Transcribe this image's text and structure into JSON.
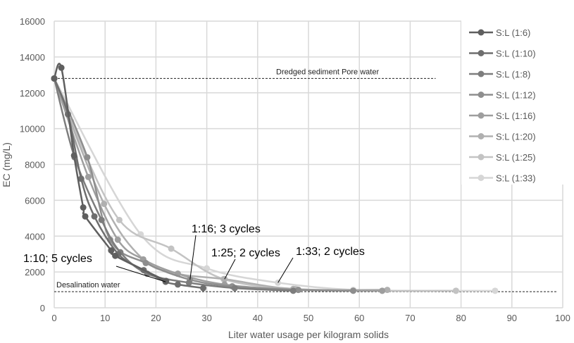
{
  "chart_data": {
    "type": "line",
    "title": "",
    "xlabel": "Liter water usage per kilogram solids",
    "ylabel": "EC (mg/L)",
    "xlim": [
      0,
      100
    ],
    "ylim": [
      0,
      16000
    ],
    "xticks": [
      0,
      10,
      20,
      30,
      40,
      50,
      60,
      70,
      80,
      90,
      100
    ],
    "yticks": [
      0,
      2000,
      4000,
      6000,
      8000,
      10000,
      12000,
      14000,
      16000
    ],
    "grid": true,
    "legend_position": "top-right",
    "reference_lines": [
      {
        "label": "Dredged sediment Pore water",
        "y": 12800
      },
      {
        "label": "Desalination water",
        "y": 900
      }
    ],
    "annotations": [
      {
        "text": "1:10; 5 cycles",
        "x": 21.9,
        "y": 1450
      },
      {
        "text": "1:16; 3 cycles",
        "x": 26.7,
        "y": 1570
      },
      {
        "text": "1:25; 2 cycles",
        "x": 33.5,
        "y": 1600
      },
      {
        "text": "1:33; 2 cycles",
        "x": 44,
        "y": 1400
      }
    ],
    "series": [
      {
        "name": "S:L (1:6)",
        "color": "#5f5f5f",
        "points": [
          [
            0,
            12800
          ],
          [
            1.4,
            13400
          ],
          [
            3.9,
            8500
          ],
          [
            5.7,
            5600
          ],
          [
            6.1,
            5100
          ],
          [
            11.2,
            3200
          ],
          [
            12,
            2900
          ],
          [
            22,
            1500
          ]
        ]
      },
      {
        "name": "S:L (1:10)",
        "color": "#6e6e6e",
        "points": [
          [
            0,
            12800
          ],
          [
            2.7,
            10800
          ],
          [
            5.3,
            7200
          ],
          [
            7.9,
            5100
          ],
          [
            12.6,
            3000
          ],
          [
            17.6,
            2100
          ],
          [
            21.9,
            1450
          ],
          [
            24.3,
            1300
          ],
          [
            29.3,
            1100
          ]
        ]
      },
      {
        "name": "S:L (1:8)",
        "color": "#7d7d7d",
        "points": [
          [
            0,
            12800
          ],
          [
            4,
            8400
          ],
          [
            9.3,
            4900
          ],
          [
            13,
            3100
          ],
          [
            18.3,
            1900
          ],
          [
            26.5,
            1400
          ],
          [
            35.5,
            1100
          ],
          [
            47,
            950
          ]
        ]
      },
      {
        "name": "S:L (1:12)",
        "color": "#8e8e8e",
        "points": [
          [
            0,
            12800
          ],
          [
            6.5,
            8400
          ],
          [
            11,
            3800
          ],
          [
            18,
            2500
          ],
          [
            26.7,
            1570
          ],
          [
            35,
            1200
          ],
          [
            48,
            1000
          ],
          [
            58.8,
            950
          ]
        ]
      },
      {
        "name": "S:L (1:16)",
        "color": "#9e9e9e",
        "points": [
          [
            0,
            12800
          ],
          [
            6.7,
            7300
          ],
          [
            12.5,
            3800
          ],
          [
            17.5,
            2700
          ],
          [
            24.3,
            1900
          ],
          [
            33.5,
            1300
          ],
          [
            48,
            1000
          ],
          [
            64.5,
            950
          ]
        ]
      },
      {
        "name": "S:L (1:20)",
        "color": "#b0b0b0",
        "points": [
          [
            0,
            12800
          ],
          [
            9.8,
            5800
          ],
          [
            17.5,
            2700
          ],
          [
            24.3,
            1900
          ],
          [
            33.5,
            1600
          ],
          [
            47,
            1050
          ],
          [
            65.5,
            1000
          ]
        ]
      },
      {
        "name": "S:L (1:25)",
        "color": "#c3c3c3",
        "points": [
          [
            0,
            12800
          ],
          [
            3.3,
            10400
          ],
          [
            12.8,
            4900
          ],
          [
            23,
            3300
          ],
          [
            33.3,
            1600
          ],
          [
            47.5,
            1050
          ],
          [
            64.5,
            950
          ],
          [
            79,
            950
          ]
        ]
      },
      {
        "name": "S:L (1:33)",
        "color": "#d6d6d6",
        "points": [
          [
            0,
            12800
          ],
          [
            17,
            4100
          ],
          [
            30,
            2200
          ],
          [
            44,
            1400
          ],
          [
            58.8,
            1000
          ],
          [
            79,
            950
          ],
          [
            86.7,
            950
          ]
        ]
      }
    ]
  }
}
